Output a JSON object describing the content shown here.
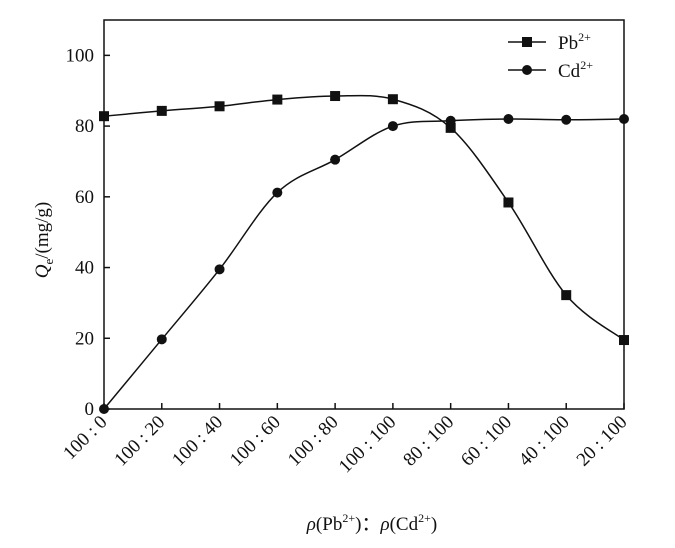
{
  "chart_data": {
    "type": "line",
    "categories": [
      "100 : 0",
      "100 : 20",
      "100 : 40",
      "100 : 60",
      "100 : 80",
      "100 : 100",
      "80 : 100",
      "60 : 100",
      "40 : 100",
      "20 : 100"
    ],
    "series": [
      {
        "name": "Pb2+",
        "name_main": "Pb",
        "name_sup": "2+",
        "marker": "square",
        "values": [
          82.8,
          84.3,
          85.6,
          87.5,
          88.5,
          87.6,
          79.5,
          58.4,
          32.2,
          19.5
        ]
      },
      {
        "name": "Cd2+",
        "name_main": "Cd",
        "name_sup": "2+",
        "marker": "circle",
        "values": [
          0,
          19.7,
          39.5,
          61.2,
          70.5,
          80.0,
          81.5,
          82.0,
          81.8,
          82.0
        ]
      }
    ],
    "ylabel": {
      "italic": "Q",
      "subscript": "e",
      "rest": "/(mg/g)"
    },
    "xlabel": {
      "rho1": "ρ",
      "species1_main": "(Pb",
      "species1_sup": "2+",
      "close1": ")",
      "separator": "：",
      "rho2": "ρ",
      "species2_main": "(Cd",
      "species2_sup": "2+",
      "close2": ")"
    },
    "ylim": [
      0,
      110
    ],
    "yticks": [
      "0",
      "20",
      "40",
      "60",
      "80",
      "100"
    ],
    "ytick_values": [
      0,
      20,
      40,
      60,
      80,
      100
    ],
    "grid": false,
    "legend": "top-right",
    "colors": {
      "line": "#111111",
      "marker": "#111111",
      "axis": "#111111"
    }
  }
}
